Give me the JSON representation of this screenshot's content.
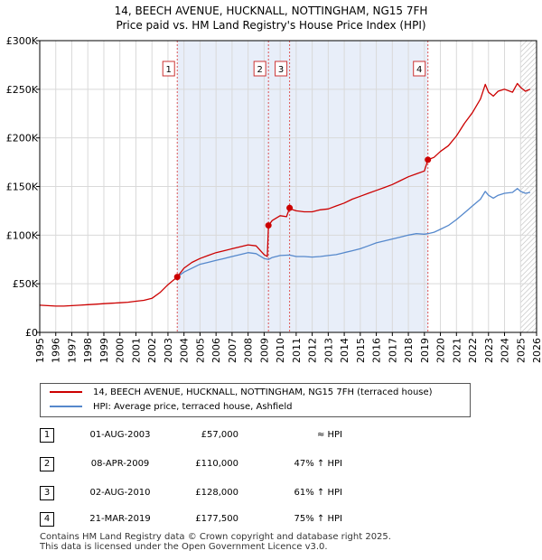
{
  "title_line1": "14, BEECH AVENUE, HUCKNALL, NOTTINGHAM, NG15 7FH",
  "title_line2": "Price paid vs. HM Land Registry's House Price Index (HPI)",
  "chart_data": {
    "type": "line",
    "title": "14, BEECH AVENUE, HUCKNALL, NOTTINGHAM, NG15 7FH",
    "subtitle": "Price paid vs. HM Land Registry's House Price Index (HPI)",
    "xlabel": "",
    "ylabel": "",
    "xlim": [
      1995,
      2026
    ],
    "ylim": [
      0,
      300000
    ],
    "x_ticks": [
      "1995",
      "1996",
      "1997",
      "1998",
      "1999",
      "2000",
      "2001",
      "2002",
      "2003",
      "2004",
      "2005",
      "2006",
      "2007",
      "2008",
      "2009",
      "2010",
      "2011",
      "2012",
      "2013",
      "2014",
      "2015",
      "2016",
      "2017",
      "2018",
      "2019",
      "2020",
      "2021",
      "2022",
      "2023",
      "2024",
      "2025",
      "2026"
    ],
    "y_ticks": [
      {
        "value": 0,
        "label": "£0"
      },
      {
        "value": 50000,
        "label": "£50K"
      },
      {
        "value": 100000,
        "label": "£100K"
      },
      {
        "value": 150000,
        "label": "£150K"
      },
      {
        "value": 200000,
        "label": "£200K"
      },
      {
        "value": 250000,
        "label": "£250K"
      },
      {
        "value": 300000,
        "label": "£300K"
      }
    ],
    "grid": true,
    "shaded_region": [
      2003.58,
      2019.22
    ],
    "forecast_from": 2025.0,
    "series": [
      {
        "name": "14, BEECH AVENUE, HUCKNALL, NOTTINGHAM, NG15 7FH (terraced house)",
        "color": "#cc0000",
        "x": [
          1995.0,
          1995.5,
          1996.0,
          1996.5,
          1997.0,
          1997.5,
          1998.0,
          1998.5,
          1999.0,
          1999.5,
          2000.0,
          2000.5,
          2001.0,
          2001.5,
          2002.0,
          2002.5,
          2003.0,
          2003.58,
          2004.0,
          2004.5,
          2005.0,
          2005.5,
          2006.0,
          2006.5,
          2007.0,
          2007.5,
          2008.0,
          2008.5,
          2009.0,
          2009.2,
          2009.27,
          2009.5,
          2010.0,
          2010.4,
          2010.59,
          2010.8,
          2011.0,
          2011.5,
          2012.0,
          2012.5,
          2013.0,
          2013.5,
          2014.0,
          2014.5,
          2015.0,
          2015.5,
          2016.0,
          2016.5,
          2017.0,
          2017.5,
          2018.0,
          2018.5,
          2019.0,
          2019.22,
          2019.6,
          2020.0,
          2020.5,
          2021.0,
          2021.5,
          2022.0,
          2022.5,
          2022.8,
          2023.0,
          2023.3,
          2023.6,
          2024.0,
          2024.5,
          2024.8,
          2025.0,
          2025.3,
          2025.6
        ],
        "y": [
          28000,
          27500,
          27000,
          27000,
          27500,
          28000,
          28500,
          29000,
          29500,
          30000,
          30500,
          31000,
          32000,
          33000,
          35000,
          41000,
          49000,
          57000,
          66000,
          72000,
          76000,
          79000,
          82000,
          84000,
          86000,
          88000,
          90000,
          89000,
          80000,
          78000,
          110000,
          115000,
          120000,
          119000,
          128000,
          126000,
          125000,
          124000,
          124000,
          126000,
          127000,
          130000,
          133000,
          137000,
          140000,
          143000,
          146000,
          149000,
          152000,
          156000,
          160000,
          163000,
          166000,
          177500,
          180000,
          186000,
          192000,
          202000,
          215000,
          226000,
          240000,
          255000,
          247000,
          243000,
          248000,
          250000,
          247000,
          256000,
          252000,
          248000,
          250000
        ]
      },
      {
        "name": "HPI: Average price, terraced house, Ashfield",
        "color": "#5588cc",
        "x": [
          2003.58,
          2004.0,
          2004.5,
          2005.0,
          2005.5,
          2006.0,
          2006.5,
          2007.0,
          2007.5,
          2008.0,
          2008.5,
          2009.0,
          2009.27,
          2009.5,
          2010.0,
          2010.59,
          2011.0,
          2011.5,
          2012.0,
          2012.5,
          2013.0,
          2013.5,
          2014.0,
          2014.5,
          2015.0,
          2015.5,
          2016.0,
          2016.5,
          2017.0,
          2017.5,
          2018.0,
          2018.5,
          2019.0,
          2019.22,
          2019.6,
          2020.0,
          2020.5,
          2021.0,
          2021.5,
          2022.0,
          2022.5,
          2022.8,
          2023.0,
          2023.3,
          2023.6,
          2024.0,
          2024.5,
          2024.8,
          2025.0,
          2025.3,
          2025.6
        ],
        "y": [
          57000,
          62000,
          66000,
          70000,
          72000,
          74000,
          76000,
          78000,
          80000,
          82000,
          81000,
          76000,
          75000,
          77000,
          79000,
          79500,
          78000,
          78000,
          77500,
          78000,
          79000,
          80000,
          82000,
          84000,
          86000,
          89000,
          92000,
          94000,
          96000,
          98000,
          100000,
          101500,
          101000,
          101500,
          103000,
          106000,
          110000,
          116000,
          123000,
          130000,
          137000,
          145000,
          141000,
          138000,
          141000,
          143000,
          144000,
          148000,
          145000,
          143000,
          144000
        ]
      }
    ],
    "markers": [
      {
        "label": "1",
        "x": 2003.58,
        "y": 57000
      },
      {
        "label": "2",
        "x": 2009.27,
        "y": 110000
      },
      {
        "label": "3",
        "x": 2010.59,
        "y": 128000
      },
      {
        "label": "4",
        "x": 2019.22,
        "y": 177500
      }
    ]
  },
  "legend": {
    "items": [
      {
        "label": "14, BEECH AVENUE, HUCKNALL, NOTTINGHAM, NG15 7FH (terraced house)",
        "color": "#cc0000"
      },
      {
        "label": "HPI: Average price, terraced house, Ashfield",
        "color": "#5588cc"
      }
    ]
  },
  "transactions": [
    {
      "num": "1",
      "date": "01-AUG-2003",
      "price": "£57,000",
      "hpi": "≈ HPI"
    },
    {
      "num": "2",
      "date": "08-APR-2009",
      "price": "£110,000",
      "hpi": "47% ↑ HPI"
    },
    {
      "num": "3",
      "date": "02-AUG-2010",
      "price": "£128,000",
      "hpi": "61% ↑ HPI"
    },
    {
      "num": "4",
      "date": "21-MAR-2019",
      "price": "£177,500",
      "hpi": "75% ↑ HPI"
    }
  ],
  "footer": {
    "line1": "Contains HM Land Registry data © Crown copyright and database right 2025.",
    "line2": "This data is licensed under the Open Government Licence v3.0."
  }
}
